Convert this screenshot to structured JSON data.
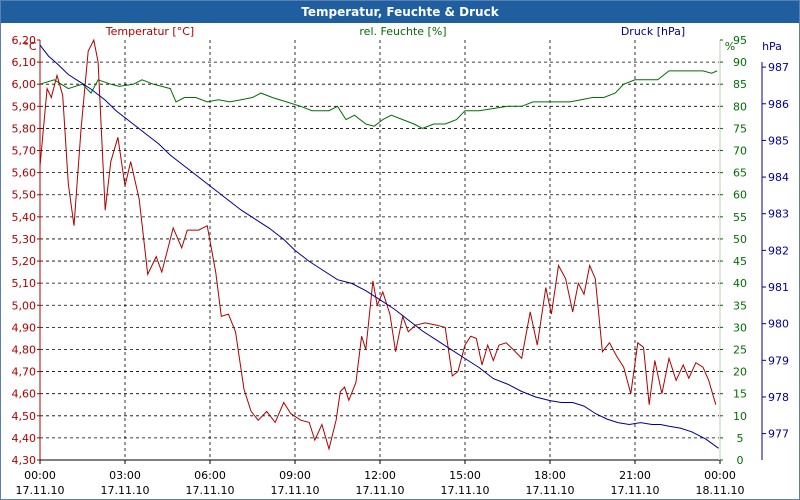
{
  "colors": {
    "temp": "#b00000",
    "humidity": "#007000",
    "pressure": "#000090",
    "titlebar": "#1f5fa0"
  },
  "chart_data": {
    "type": "line",
    "title": "Temperatur, Feuchte & Druck",
    "grid": true,
    "x_ticks": [
      {
        "time": "00:00",
        "date": "17.11.10"
      },
      {
        "time": "03:00",
        "date": "17.11.10"
      },
      {
        "time": "06:00",
        "date": "17.11.10"
      },
      {
        "time": "09:00",
        "date": "17.11.10"
      },
      {
        "time": "12:00",
        "date": "17.11.10"
      },
      {
        "time": "15:00",
        "date": "17.11.10"
      },
      {
        "time": "18:00",
        "date": "17.11.10"
      },
      {
        "time": "21:00",
        "date": "17.11.10"
      },
      {
        "time": "00:00",
        "date": "18.11.10"
      }
    ],
    "xlim_hours": [
      0,
      24
    ],
    "axes": {
      "temp": {
        "label": "Temperatur [°C]",
        "unit": "°C",
        "ylim": [
          4.3,
          6.2
        ],
        "ticks": [
          "6,20",
          "6,10",
          "6,00",
          "5,90",
          "5,80",
          "5,70",
          "5,60",
          "5,50",
          "5,40",
          "5,30",
          "5,20",
          "5,10",
          "5,00",
          "4,90",
          "4,80",
          "4,70",
          "4,60",
          "4,50",
          "4,40",
          "4,30"
        ]
      },
      "humidity": {
        "label": "rel. Feuchte [%]",
        "unit": "%",
        "ylim": [
          0,
          95
        ],
        "ticks": [
          "95",
          "90",
          "85",
          "80",
          "75",
          "70",
          "65",
          "60",
          "55",
          "50",
          "45",
          "40",
          "35",
          "30",
          "25",
          "20",
          "15",
          "10",
          "5",
          "0"
        ]
      },
      "pressure": {
        "label": "Druck [hPa]",
        "unit": "hPa",
        "ylim": [
          976.28,
          987.74
        ],
        "ticks": [
          "987",
          "986",
          "985",
          "984",
          "983",
          "982",
          "981",
          "980",
          "979",
          "978",
          "977"
        ]
      }
    },
    "series": [
      {
        "name": "Temperatur [°C]",
        "axis": "temp",
        "points": [
          [
            0,
            5.63
          ],
          [
            0.25,
            5.98
          ],
          [
            0.4,
            5.94
          ],
          [
            0.6,
            6.04
          ],
          [
            0.8,
            5.95
          ],
          [
            1.0,
            5.55
          ],
          [
            1.2,
            5.36
          ],
          [
            1.45,
            5.8
          ],
          [
            1.7,
            6.15
          ],
          [
            1.9,
            6.2
          ],
          [
            2.05,
            6.1
          ],
          [
            2.3,
            5.43
          ],
          [
            2.5,
            5.65
          ],
          [
            2.75,
            5.76
          ],
          [
            3.0,
            5.54
          ],
          [
            3.2,
            5.65
          ],
          [
            3.5,
            5.48
          ],
          [
            3.8,
            5.14
          ],
          [
            4.1,
            5.22
          ],
          [
            4.3,
            5.15
          ],
          [
            4.7,
            5.35
          ],
          [
            5.0,
            5.26
          ],
          [
            5.2,
            5.34
          ],
          [
            5.6,
            5.34
          ],
          [
            5.9,
            5.36
          ],
          [
            6.2,
            5.15
          ],
          [
            6.4,
            4.95
          ],
          [
            6.65,
            4.96
          ],
          [
            6.9,
            4.88
          ],
          [
            7.2,
            4.62
          ],
          [
            7.45,
            4.52
          ],
          [
            7.7,
            4.48
          ],
          [
            8.0,
            4.52
          ],
          [
            8.3,
            4.47
          ],
          [
            8.6,
            4.56
          ],
          [
            8.85,
            4.51
          ],
          [
            9.2,
            4.48
          ],
          [
            9.5,
            4.47
          ],
          [
            9.7,
            4.39
          ],
          [
            9.95,
            4.46
          ],
          [
            10.2,
            4.35
          ],
          [
            10.45,
            4.48
          ],
          [
            10.6,
            4.61
          ],
          [
            10.75,
            4.63
          ],
          [
            10.9,
            4.57
          ],
          [
            11.15,
            4.65
          ],
          [
            11.35,
            4.86
          ],
          [
            11.5,
            4.8
          ],
          [
            11.75,
            5.11
          ],
          [
            11.9,
            5.0
          ],
          [
            12.1,
            5.06
          ],
          [
            12.35,
            4.96
          ],
          [
            12.55,
            4.79
          ],
          [
            12.8,
            4.95
          ],
          [
            13.0,
            4.88
          ],
          [
            13.25,
            4.91
          ],
          [
            13.6,
            4.92
          ],
          [
            14.0,
            4.91
          ],
          [
            14.3,
            4.9
          ],
          [
            14.55,
            4.68
          ],
          [
            14.75,
            4.7
          ],
          [
            15.0,
            4.82
          ],
          [
            15.2,
            4.86
          ],
          [
            15.4,
            4.85
          ],
          [
            15.6,
            4.73
          ],
          [
            15.8,
            4.82
          ],
          [
            16.0,
            4.75
          ],
          [
            16.2,
            4.82
          ],
          [
            16.45,
            4.83
          ],
          [
            16.7,
            4.8
          ],
          [
            17.0,
            4.76
          ],
          [
            17.3,
            4.97
          ],
          [
            17.55,
            4.82
          ],
          [
            17.85,
            5.08
          ],
          [
            18.05,
            4.96
          ],
          [
            18.3,
            5.18
          ],
          [
            18.55,
            5.12
          ],
          [
            18.8,
            4.97
          ],
          [
            19.0,
            5.1
          ],
          [
            19.2,
            5.05
          ],
          [
            19.4,
            5.18
          ],
          [
            19.6,
            5.12
          ],
          [
            19.85,
            4.79
          ],
          [
            20.1,
            4.83
          ],
          [
            20.35,
            4.77
          ],
          [
            20.6,
            4.72
          ],
          [
            20.85,
            4.6
          ],
          [
            21.1,
            4.83
          ],
          [
            21.3,
            4.81
          ],
          [
            21.5,
            4.55
          ],
          [
            21.7,
            4.75
          ],
          [
            21.95,
            4.6
          ],
          [
            22.2,
            4.76
          ],
          [
            22.45,
            4.66
          ],
          [
            22.7,
            4.73
          ],
          [
            22.9,
            4.67
          ],
          [
            23.15,
            4.74
          ],
          [
            23.4,
            4.72
          ],
          [
            23.6,
            4.66
          ],
          [
            23.85,
            4.55
          ]
        ]
      },
      {
        "name": "rel. Feuchte [%]",
        "axis": "humidity",
        "points": [
          [
            0,
            85
          ],
          [
            0.5,
            86
          ],
          [
            1.0,
            84
          ],
          [
            1.5,
            85
          ],
          [
            1.8,
            83
          ],
          [
            2.05,
            86
          ],
          [
            2.5,
            85
          ],
          [
            2.8,
            84.5
          ],
          [
            3.3,
            85
          ],
          [
            3.6,
            86
          ],
          [
            4.0,
            85
          ],
          [
            4.3,
            84.5
          ],
          [
            4.6,
            84
          ],
          [
            4.8,
            81
          ],
          [
            5.1,
            82
          ],
          [
            5.5,
            82
          ],
          [
            5.9,
            81
          ],
          [
            6.3,
            81.5
          ],
          [
            6.7,
            81
          ],
          [
            7.1,
            81.5
          ],
          [
            7.5,
            82
          ],
          [
            7.8,
            83
          ],
          [
            8.2,
            82
          ],
          [
            8.7,
            81
          ],
          [
            9.2,
            80
          ],
          [
            9.6,
            79
          ],
          [
            10.2,
            79
          ],
          [
            10.5,
            80
          ],
          [
            10.8,
            77
          ],
          [
            11.1,
            78
          ],
          [
            11.5,
            76
          ],
          [
            11.8,
            75.5
          ],
          [
            12.1,
            77
          ],
          [
            12.4,
            78
          ],
          [
            12.8,
            77
          ],
          [
            13.2,
            76
          ],
          [
            13.5,
            75
          ],
          [
            13.9,
            76
          ],
          [
            14.3,
            76
          ],
          [
            14.7,
            77
          ],
          [
            15.0,
            79
          ],
          [
            15.5,
            79
          ],
          [
            16.0,
            79.5
          ],
          [
            16.5,
            80
          ],
          [
            17.0,
            80
          ],
          [
            17.4,
            81
          ],
          [
            17.8,
            81
          ],
          [
            18.3,
            81
          ],
          [
            18.7,
            81
          ],
          [
            19.1,
            81.5
          ],
          [
            19.5,
            82
          ],
          [
            19.9,
            82
          ],
          [
            20.3,
            83
          ],
          [
            20.6,
            85
          ],
          [
            21.0,
            86
          ],
          [
            21.4,
            86
          ],
          [
            21.8,
            86
          ],
          [
            22.2,
            88
          ],
          [
            22.6,
            88
          ],
          [
            23.0,
            88
          ],
          [
            23.4,
            88
          ],
          [
            23.7,
            87.5
          ],
          [
            23.9,
            88
          ]
        ]
      },
      {
        "name": "Druck [hPa]",
        "axis": "pressure",
        "points": [
          [
            0,
            987.6
          ],
          [
            0.3,
            987.3
          ],
          [
            0.6,
            987.1
          ],
          [
            1.0,
            986.8
          ],
          [
            1.4,
            986.6
          ],
          [
            1.8,
            986.4
          ],
          [
            2.3,
            986.1
          ],
          [
            2.7,
            985.8
          ],
          [
            3.2,
            985.5
          ],
          [
            3.7,
            985.2
          ],
          [
            4.2,
            984.9
          ],
          [
            4.6,
            984.6
          ],
          [
            5.1,
            984.3
          ],
          [
            5.6,
            984.0
          ],
          [
            6.1,
            983.7
          ],
          [
            6.6,
            983.4
          ],
          [
            7.1,
            983.1
          ],
          [
            7.6,
            982.85
          ],
          [
            8.1,
            982.6
          ],
          [
            8.6,
            982.3
          ],
          [
            9.0,
            982.0
          ],
          [
            9.5,
            981.7
          ],
          [
            10.0,
            981.45
          ],
          [
            10.5,
            981.2
          ],
          [
            11.0,
            981.1
          ],
          [
            11.5,
            980.9
          ],
          [
            12.0,
            980.65
          ],
          [
            12.5,
            980.4
          ],
          [
            13.0,
            980.1
          ],
          [
            13.5,
            979.8
          ],
          [
            14.0,
            979.55
          ],
          [
            14.5,
            979.3
          ],
          [
            15.0,
            979.05
          ],
          [
            15.5,
            978.8
          ],
          [
            16.0,
            978.5
          ],
          [
            16.5,
            978.35
          ],
          [
            17.0,
            978.15
          ],
          [
            17.5,
            978.0
          ],
          [
            18.0,
            977.9
          ],
          [
            18.4,
            977.85
          ],
          [
            18.8,
            977.85
          ],
          [
            19.2,
            977.75
          ],
          [
            19.6,
            977.55
          ],
          [
            20.0,
            977.4
          ],
          [
            20.4,
            977.3
          ],
          [
            20.8,
            977.25
          ],
          [
            21.2,
            977.3
          ],
          [
            21.6,
            977.25
          ],
          [
            21.9,
            977.25
          ],
          [
            22.2,
            977.2
          ],
          [
            22.6,
            977.15
          ],
          [
            23.0,
            977.05
          ],
          [
            23.5,
            976.85
          ],
          [
            23.95,
            976.6
          ]
        ]
      }
    ]
  }
}
